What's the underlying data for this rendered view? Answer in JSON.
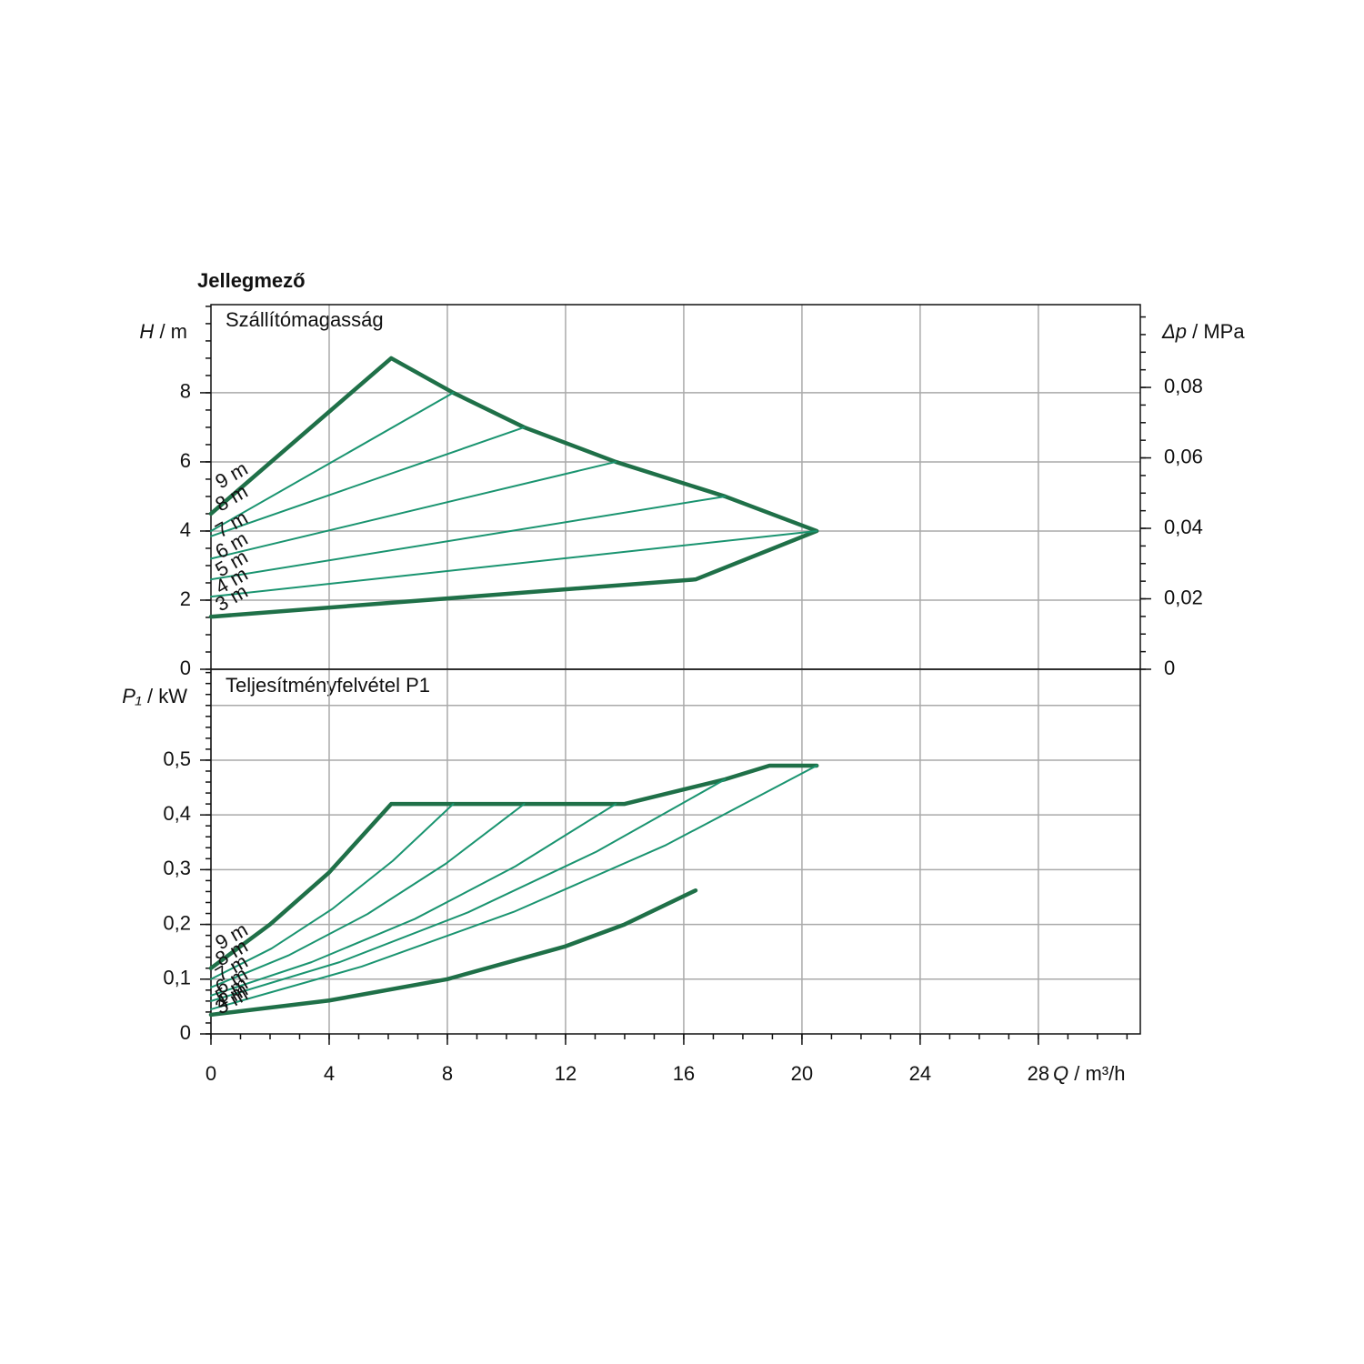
{
  "chart_data": [
    {
      "type": "line",
      "title": "Jellegmező",
      "subtitle": "Szállítómagasság",
      "ylabel": {
        "symbol": "H",
        "unit": "/ m"
      },
      "y2label": {
        "symbol": "Δp",
        "unit": "/ MPa"
      },
      "xlim": [
        0,
        31.45
      ],
      "xgrid": [
        4,
        8,
        12,
        16,
        20,
        24,
        28
      ],
      "ylim": [
        0,
        10.55
      ],
      "yticks": [
        0,
        2,
        4,
        6,
        8
      ],
      "yminor": 0.5,
      "ygrid": [
        2,
        4,
        6,
        8
      ],
      "y2lim": [
        0,
        0.1035
      ],
      "y2ticks": [
        0,
        {
          "value": 0.02,
          "label": "0,02"
        },
        {
          "value": 0.04,
          "label": "0,04"
        },
        {
          "value": 0.06,
          "label": "0,06"
        },
        {
          "value": 0.08,
          "label": "0,08"
        }
      ],
      "y2minor": 0.005,
      "curve_labels": [
        "9 m",
        "8 m",
        "7 m",
        "6 m",
        "5 m",
        "4 m",
        "3 m"
      ],
      "label_color": "#2a9a7a",
      "series": [
        {
          "weight": "thick",
          "color": "#1f7048",
          "x": [
            0,
            6.1,
            8.2,
            10.6,
            13.7,
            17.4,
            20.5,
            16.4,
            8,
            0
          ],
          "values": [
            4.5,
            9.0,
            8.0,
            7.0,
            6.0,
            5.0,
            4.0,
            2.6,
            2.05,
            1.52
          ]
        },
        {
          "weight": "thin",
          "color": "#1a9470",
          "x": [
            0,
            8.2
          ],
          "values": [
            4.0,
            8.0
          ]
        },
        {
          "weight": "thin",
          "color": "#1a9470",
          "x": [
            0,
            10.6
          ],
          "values": [
            3.85,
            7.0
          ]
        },
        {
          "weight": "thin",
          "color": "#1a9470",
          "x": [
            0,
            13.7
          ],
          "values": [
            3.2,
            6.0
          ]
        },
        {
          "weight": "thin",
          "color": "#1a9470",
          "x": [
            0,
            17.4
          ],
          "values": [
            2.6,
            5.0
          ]
        },
        {
          "weight": "thin",
          "color": "#1a9470",
          "x": [
            0,
            20.5
          ],
          "values": [
            2.1,
            4.0
          ]
        }
      ]
    },
    {
      "type": "line",
      "subtitle": "Teljesítményfelvétel P1",
      "ylabel": {
        "symbol": "P₁",
        "unit": "/ kW"
      },
      "xlabel": {
        "symbol": "Q",
        "unit": "/ m³/h"
      },
      "xlim": [
        0,
        31.45
      ],
      "xticks": [
        0,
        4,
        8,
        12,
        16,
        20,
        24,
        28
      ],
      "xminor": 1,
      "ylim": [
        0,
        0.666
      ],
      "yticks": [
        0,
        {
          "value": 0.1,
          "label": "0,1"
        },
        {
          "value": 0.2,
          "label": "0,2"
        },
        {
          "value": 0.3,
          "label": "0,3"
        },
        {
          "value": 0.4,
          "label": "0,4"
        },
        {
          "value": 0.5,
          "label": "0,5"
        }
      ],
      "yminor": 0.02,
      "ygrid": [
        0.1,
        0.2,
        0.3,
        0.4,
        0.5,
        0.6
      ],
      "curve_labels": [
        "9 m",
        "8 m",
        "7 m",
        "6 m",
        "5 m",
        "4 m",
        "3 m"
      ],
      "label_color": "#2a9a7a",
      "series": [
        {
          "weight": "thick",
          "color": "#1f7048",
          "x": [
            0,
            2,
            4,
            6.1,
            14,
            17.4,
            18.9,
            20.5
          ],
          "values": [
            0.12,
            0.2,
            0.295,
            0.42,
            0.42,
            0.465,
            0.49,
            0.49
          ]
        },
        {
          "weight": "thick",
          "color": "#1f7048",
          "x": [
            0,
            4,
            8,
            12,
            14,
            16.4
          ],
          "values": [
            0.035,
            0.061,
            0.1,
            0.16,
            0.2,
            0.262
          ]
        },
        {
          "weight": "thin",
          "color": "#1a9470",
          "x": [
            0,
            2.05,
            4.1,
            6.15,
            8.2
          ],
          "values": [
            0.1,
            0.156,
            0.228,
            0.316,
            0.42
          ]
        },
        {
          "weight": "thin",
          "color": "#1a9470",
          "x": [
            0,
            2.65,
            5.3,
            7.95,
            10.6
          ],
          "values": [
            0.085,
            0.144,
            0.219,
            0.311,
            0.42
          ]
        },
        {
          "weight": "thin",
          "color": "#1a9470",
          "x": [
            0,
            3.4,
            6.9,
            10.3,
            13.7
          ],
          "values": [
            0.07,
            0.131,
            0.21,
            0.306,
            0.42
          ]
        },
        {
          "weight": "thin",
          "color": "#1a9470",
          "x": [
            0,
            4.35,
            8.7,
            13.05,
            17.4
          ],
          "values": [
            0.06,
            0.131,
            0.222,
            0.333,
            0.465
          ]
        },
        {
          "weight": "thin",
          "color": "#1a9470",
          "x": [
            0,
            5.1,
            10.25,
            15.4,
            20.5
          ],
          "values": [
            0.045,
            0.123,
            0.223,
            0.345,
            0.49
          ]
        }
      ]
    }
  ]
}
